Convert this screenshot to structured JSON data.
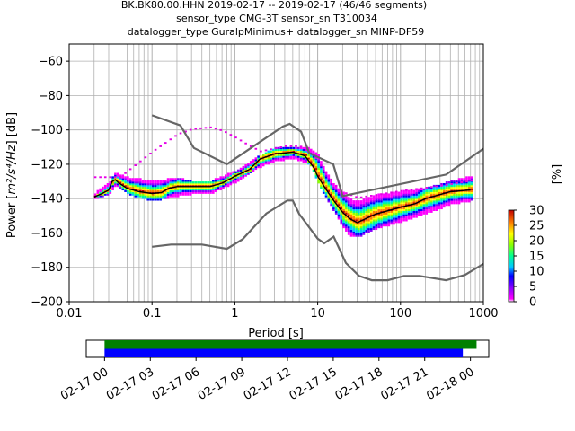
{
  "chart_data": [
    {
      "type": "heatmap",
      "title_lines": [
        "BK.BK80.00.HHN   2019-02-17 -- 2019-02-17  (46/46 segments)",
        "sensor_type CMG-3T sensor_sn T310034",
        "datalogger_type GuralpMinimus+ datalogger_sn MINP-DF59"
      ],
      "xlabel": "Period [s]",
      "ylabel_main": "Power [",
      "ylabel_units": "m²/s⁴/Hz",
      "ylabel_tail": "] [dB]",
      "xscale": "log",
      "xlim": [
        0.01,
        1000
      ],
      "ylim": [
        -200,
        -50
      ],
      "x_ticks": [
        0.01,
        0.1,
        1,
        10,
        100,
        1000
      ],
      "x_tick_labels": [
        "0.01",
        "0.1",
        "1",
        "10",
        "100",
        "1000"
      ],
      "y_ticks": [
        -200,
        -180,
        -160,
        -140,
        -120,
        -100,
        -80,
        -60
      ],
      "y_tick_labels": [
        "−200",
        "−180",
        "−160",
        "−140",
        "−120",
        "−100",
        "−80",
        "−60"
      ],
      "grid": true,
      "colorbar": {
        "label": "[%]",
        "min": 0,
        "max": 30,
        "ticks": [
          0,
          5,
          10,
          15,
          20,
          25,
          30
        ],
        "tick_labels": [
          "0",
          "5",
          "10",
          "15",
          "20",
          "25",
          "30"
        ]
      },
      "noise_model_high": [
        [
          0.1,
          -91.5
        ],
        [
          0.22,
          -97.4
        ],
        [
          0.32,
          -110.5
        ],
        [
          0.8,
          -120
        ],
        [
          3.8,
          -98
        ],
        [
          4.6,
          -96.5
        ],
        [
          6.3,
          -101
        ],
        [
          7.9,
          -113.5
        ],
        [
          15.4,
          -120
        ],
        [
          20,
          -138.5
        ],
        [
          354.8,
          -126
        ],
        [
          1000,
          -111
        ]
      ],
      "noise_model_low": [
        [
          0.1,
          -168
        ],
        [
          0.17,
          -166.7
        ],
        [
          0.4,
          -166.7
        ],
        [
          0.8,
          -169.2
        ],
        [
          1.24,
          -163.7
        ],
        [
          2.4,
          -148.6
        ],
        [
          4.3,
          -141.1
        ],
        [
          5,
          -141.1
        ],
        [
          6,
          -149
        ],
        [
          10,
          -163.3
        ],
        [
          12,
          -166
        ],
        [
          15.6,
          -162.1
        ],
        [
          21.9,
          -177.5
        ],
        [
          31.6,
          -185
        ],
        [
          45,
          -187.5
        ],
        [
          70,
          -187.5
        ],
        [
          110,
          -185
        ],
        [
          170,
          -185
        ],
        [
          354.8,
          -187.5
        ],
        [
          600,
          -184.4
        ],
        [
          1000,
          -178
        ]
      ],
      "median_psd": [
        [
          0.02,
          -139
        ],
        [
          0.025,
          -137
        ],
        [
          0.03,
          -135
        ],
        [
          0.033,
          -130
        ],
        [
          0.036,
          -129
        ],
        [
          0.04,
          -131
        ],
        [
          0.05,
          -134
        ],
        [
          0.07,
          -136
        ],
        [
          0.1,
          -137
        ],
        [
          0.13,
          -136.5
        ],
        [
          0.16,
          -134
        ],
        [
          0.2,
          -133
        ],
        [
          0.3,
          -133
        ],
        [
          0.5,
          -133
        ],
        [
          0.7,
          -131
        ],
        [
          1,
          -127
        ],
        [
          1.5,
          -123
        ],
        [
          2,
          -117
        ],
        [
          3,
          -114
        ],
        [
          5,
          -113
        ],
        [
          7,
          -115
        ],
        [
          9,
          -122
        ],
        [
          10,
          -127
        ],
        [
          12,
          -133
        ],
        [
          15,
          -140
        ],
        [
          20,
          -148
        ],
        [
          25,
          -152
        ],
        [
          30,
          -154
        ],
        [
          50,
          -149
        ],
        [
          100,
          -145
        ],
        [
          150,
          -143
        ],
        [
          200,
          -140
        ],
        [
          400,
          -136
        ],
        [
          700,
          -135
        ]
      ],
      "segment_spread": [
        [
          0.02,
          -140,
          -138
        ],
        [
          0.03,
          -137,
          -132
        ],
        [
          0.035,
          -132,
          -126
        ],
        [
          0.05,
          -137,
          -129
        ],
        [
          0.1,
          -141,
          -131
        ],
        [
          0.2,
          -138,
          -129
        ],
        [
          0.3,
          -137,
          -131
        ],
        [
          0.5,
          -137,
          -131
        ],
        [
          1,
          -130,
          -125
        ],
        [
          2,
          -121,
          -116
        ],
        [
          3,
          -118,
          -112
        ],
        [
          5,
          -116,
          -111
        ],
        [
          8,
          -120,
          -112
        ],
        [
          10,
          -131,
          -116
        ],
        [
          12,
          -138,
          -125
        ],
        [
          15,
          -146,
          -132
        ],
        [
          20,
          -157,
          -138
        ],
        [
          25,
          -162,
          -142
        ],
        [
          30,
          -162,
          -143
        ],
        [
          50,
          -157,
          -139
        ],
        [
          100,
          -153,
          -137
        ],
        [
          200,
          -148,
          -135
        ],
        [
          400,
          -143,
          -131
        ],
        [
          700,
          -141,
          -128
        ]
      ],
      "outlier_band": [
        [
          0.04,
          -128
        ],
        [
          0.1,
          -113
        ],
        [
          0.2,
          -103
        ],
        [
          0.3,
          -100
        ],
        [
          0.5,
          -99
        ],
        [
          0.7,
          -101
        ],
        [
          1,
          -105
        ],
        [
          1.5,
          -110
        ],
        [
          2,
          -113
        ],
        [
          4,
          -110
        ],
        [
          6,
          -110
        ],
        [
          9,
          -116
        ],
        [
          12,
          -125
        ],
        [
          18,
          -136
        ],
        [
          30,
          -140
        ],
        [
          100,
          -136
        ],
        [
          300,
          -133
        ],
        [
          700,
          -130
        ]
      ]
    },
    {
      "type": "timeline",
      "tick_labels": [
        "02-17 00",
        "02-17 03",
        "02-17 06",
        "02-17 09",
        "02-17 12",
        "02-17 15",
        "02-17 18",
        "02-17 21",
        "02-18 00"
      ],
      "tick_hours": [
        0,
        3,
        6,
        9,
        12,
        15,
        18,
        21,
        24
      ],
      "range_hours": [
        -1.2,
        25.2
      ],
      "bars": [
        {
          "color": "#008000",
          "start_hour": 0,
          "end_hour": 24.4
        },
        {
          "color": "#0000ff",
          "start_hour": 0,
          "end_hour": 23.5
        }
      ]
    }
  ]
}
